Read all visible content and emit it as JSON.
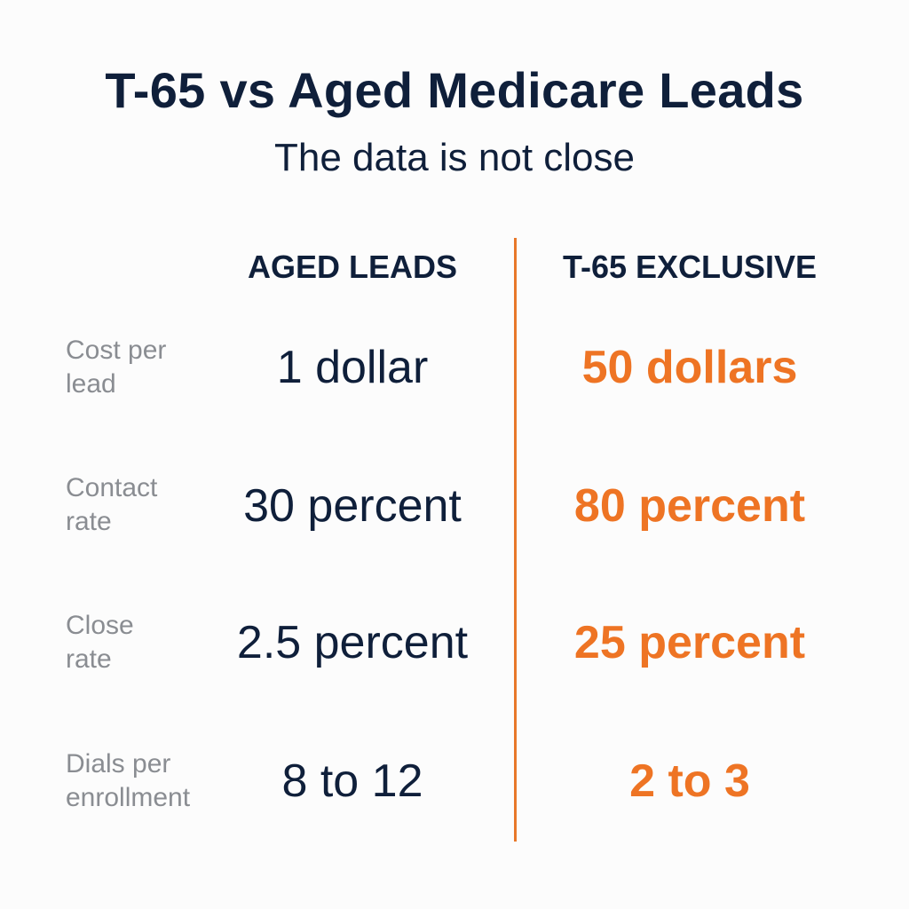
{
  "header": {
    "title": "T-65 vs Aged Medicare Leads",
    "subtitle": "The data is not close"
  },
  "columns": {
    "aged": "AGED LEADS",
    "t65": "T-65 EXCLUSIVE"
  },
  "rows": [
    {
      "label_line1": "Cost per",
      "label_line2": "lead",
      "aged": "1 dollar",
      "t65": "50 dollars"
    },
    {
      "label_line1": "Contact",
      "label_line2": "rate",
      "aged": "30 percent",
      "t65": "80 percent"
    },
    {
      "label_line1": "Close",
      "label_line2": "rate",
      "aged": "2.5 percent",
      "t65": "25 percent"
    },
    {
      "label_line1": "Dials per",
      "label_line2": "enrollment",
      "aged": "8 to 12",
      "t65": "2 to 3"
    }
  ],
  "colors": {
    "navy": "#0f1f3a",
    "accent_orange": "#ee7424",
    "label_gray": "#8a8d92",
    "background": "#fcfcfc"
  }
}
